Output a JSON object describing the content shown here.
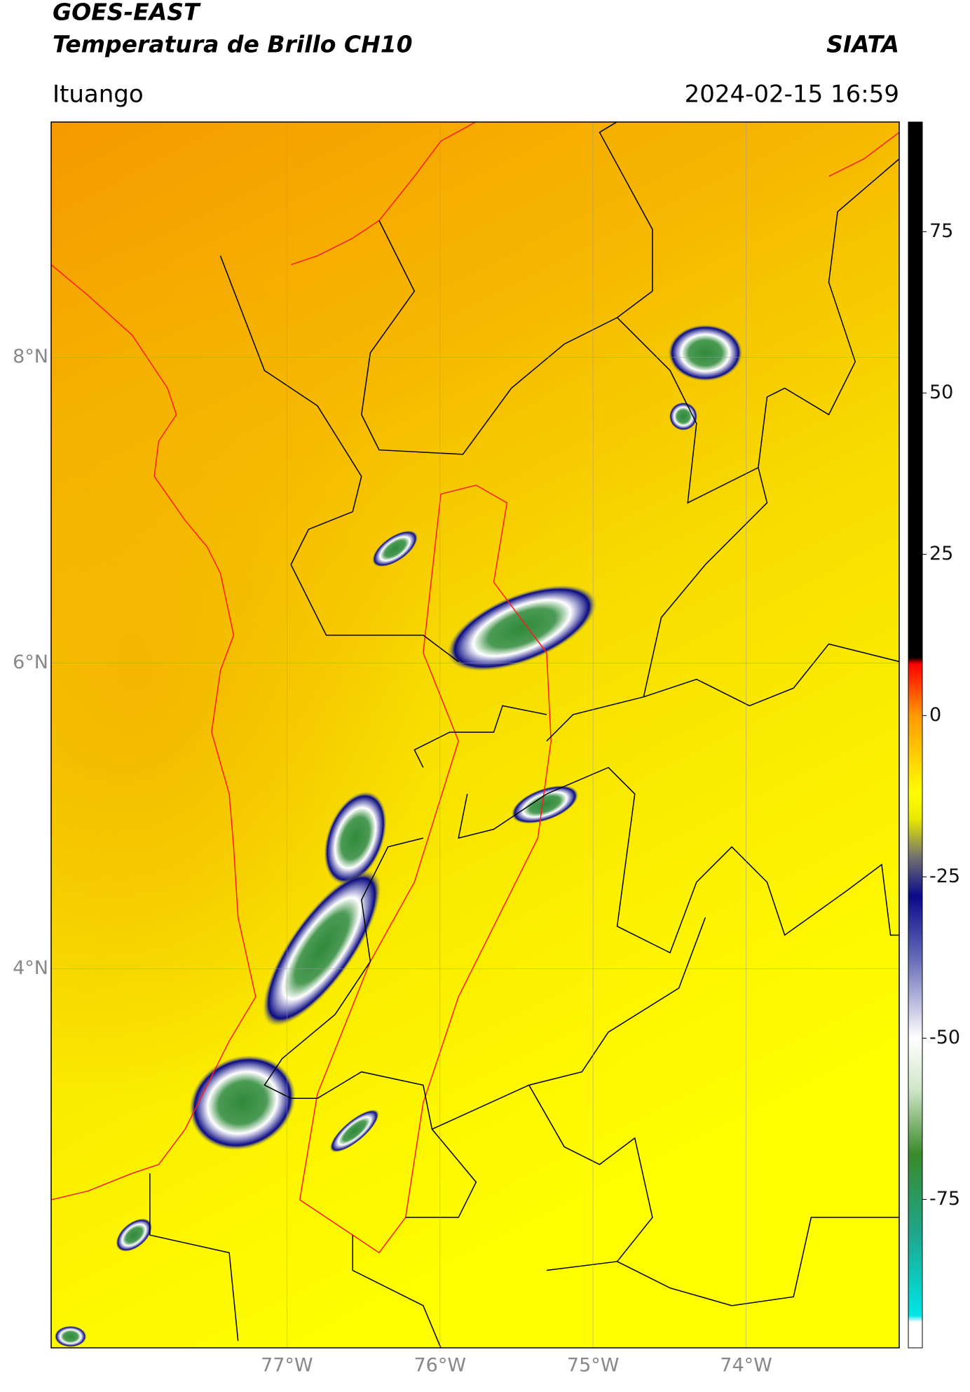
{
  "header": {
    "title": "GOES-EAST",
    "subtitle": "Temperatura de Brillo CH10",
    "brand": "SIATA",
    "location": "Ituango",
    "datetime": "2024-02-15 16:59"
  },
  "map": {
    "xlim": [
      -78.54,
      -73.0
    ],
    "ylim": [
      1.52,
      9.54
    ],
    "xticks": [
      {
        "value": -77,
        "label": "77°W"
      },
      {
        "value": -76,
        "label": "76°W"
      },
      {
        "value": -75,
        "label": "75°W"
      },
      {
        "value": -74,
        "label": "74°W"
      }
    ],
    "yticks": [
      {
        "value": 4,
        "label": "4°N"
      },
      {
        "value": 6,
        "label": "6°N"
      },
      {
        "value": 8,
        "label": "8°N"
      }
    ],
    "grid": true
  },
  "colorbar": {
    "lim": [
      -98,
      92
    ],
    "ticks": [
      -75,
      -50,
      -25,
      0,
      25,
      50,
      75
    ],
    "stops": [
      {
        "value": -98,
        "color": "#ffffff"
      },
      {
        "value": -94,
        "color": "#ffffff"
      },
      {
        "value": -93,
        "color": "#00e5e5"
      },
      {
        "value": -80,
        "color": "#1fa58a"
      },
      {
        "value": -68,
        "color": "#3a8a2a"
      },
      {
        "value": -58,
        "color": "#cfe6c8"
      },
      {
        "value": -50,
        "color": "#ffffff"
      },
      {
        "value": -38,
        "color": "#6a6fb8"
      },
      {
        "value": -28,
        "color": "#0a0a8a"
      },
      {
        "value": -22,
        "color": "#707070"
      },
      {
        "value": -16,
        "color": "#e9e900"
      },
      {
        "value": -12,
        "color": "#ffff00"
      },
      {
        "value": 0,
        "color": "#ff9900"
      },
      {
        "value": 8,
        "color": "#ff0000"
      },
      {
        "value": 9,
        "color": "#000000"
      },
      {
        "value": 92,
        "color": "#000000"
      }
    ]
  }
}
